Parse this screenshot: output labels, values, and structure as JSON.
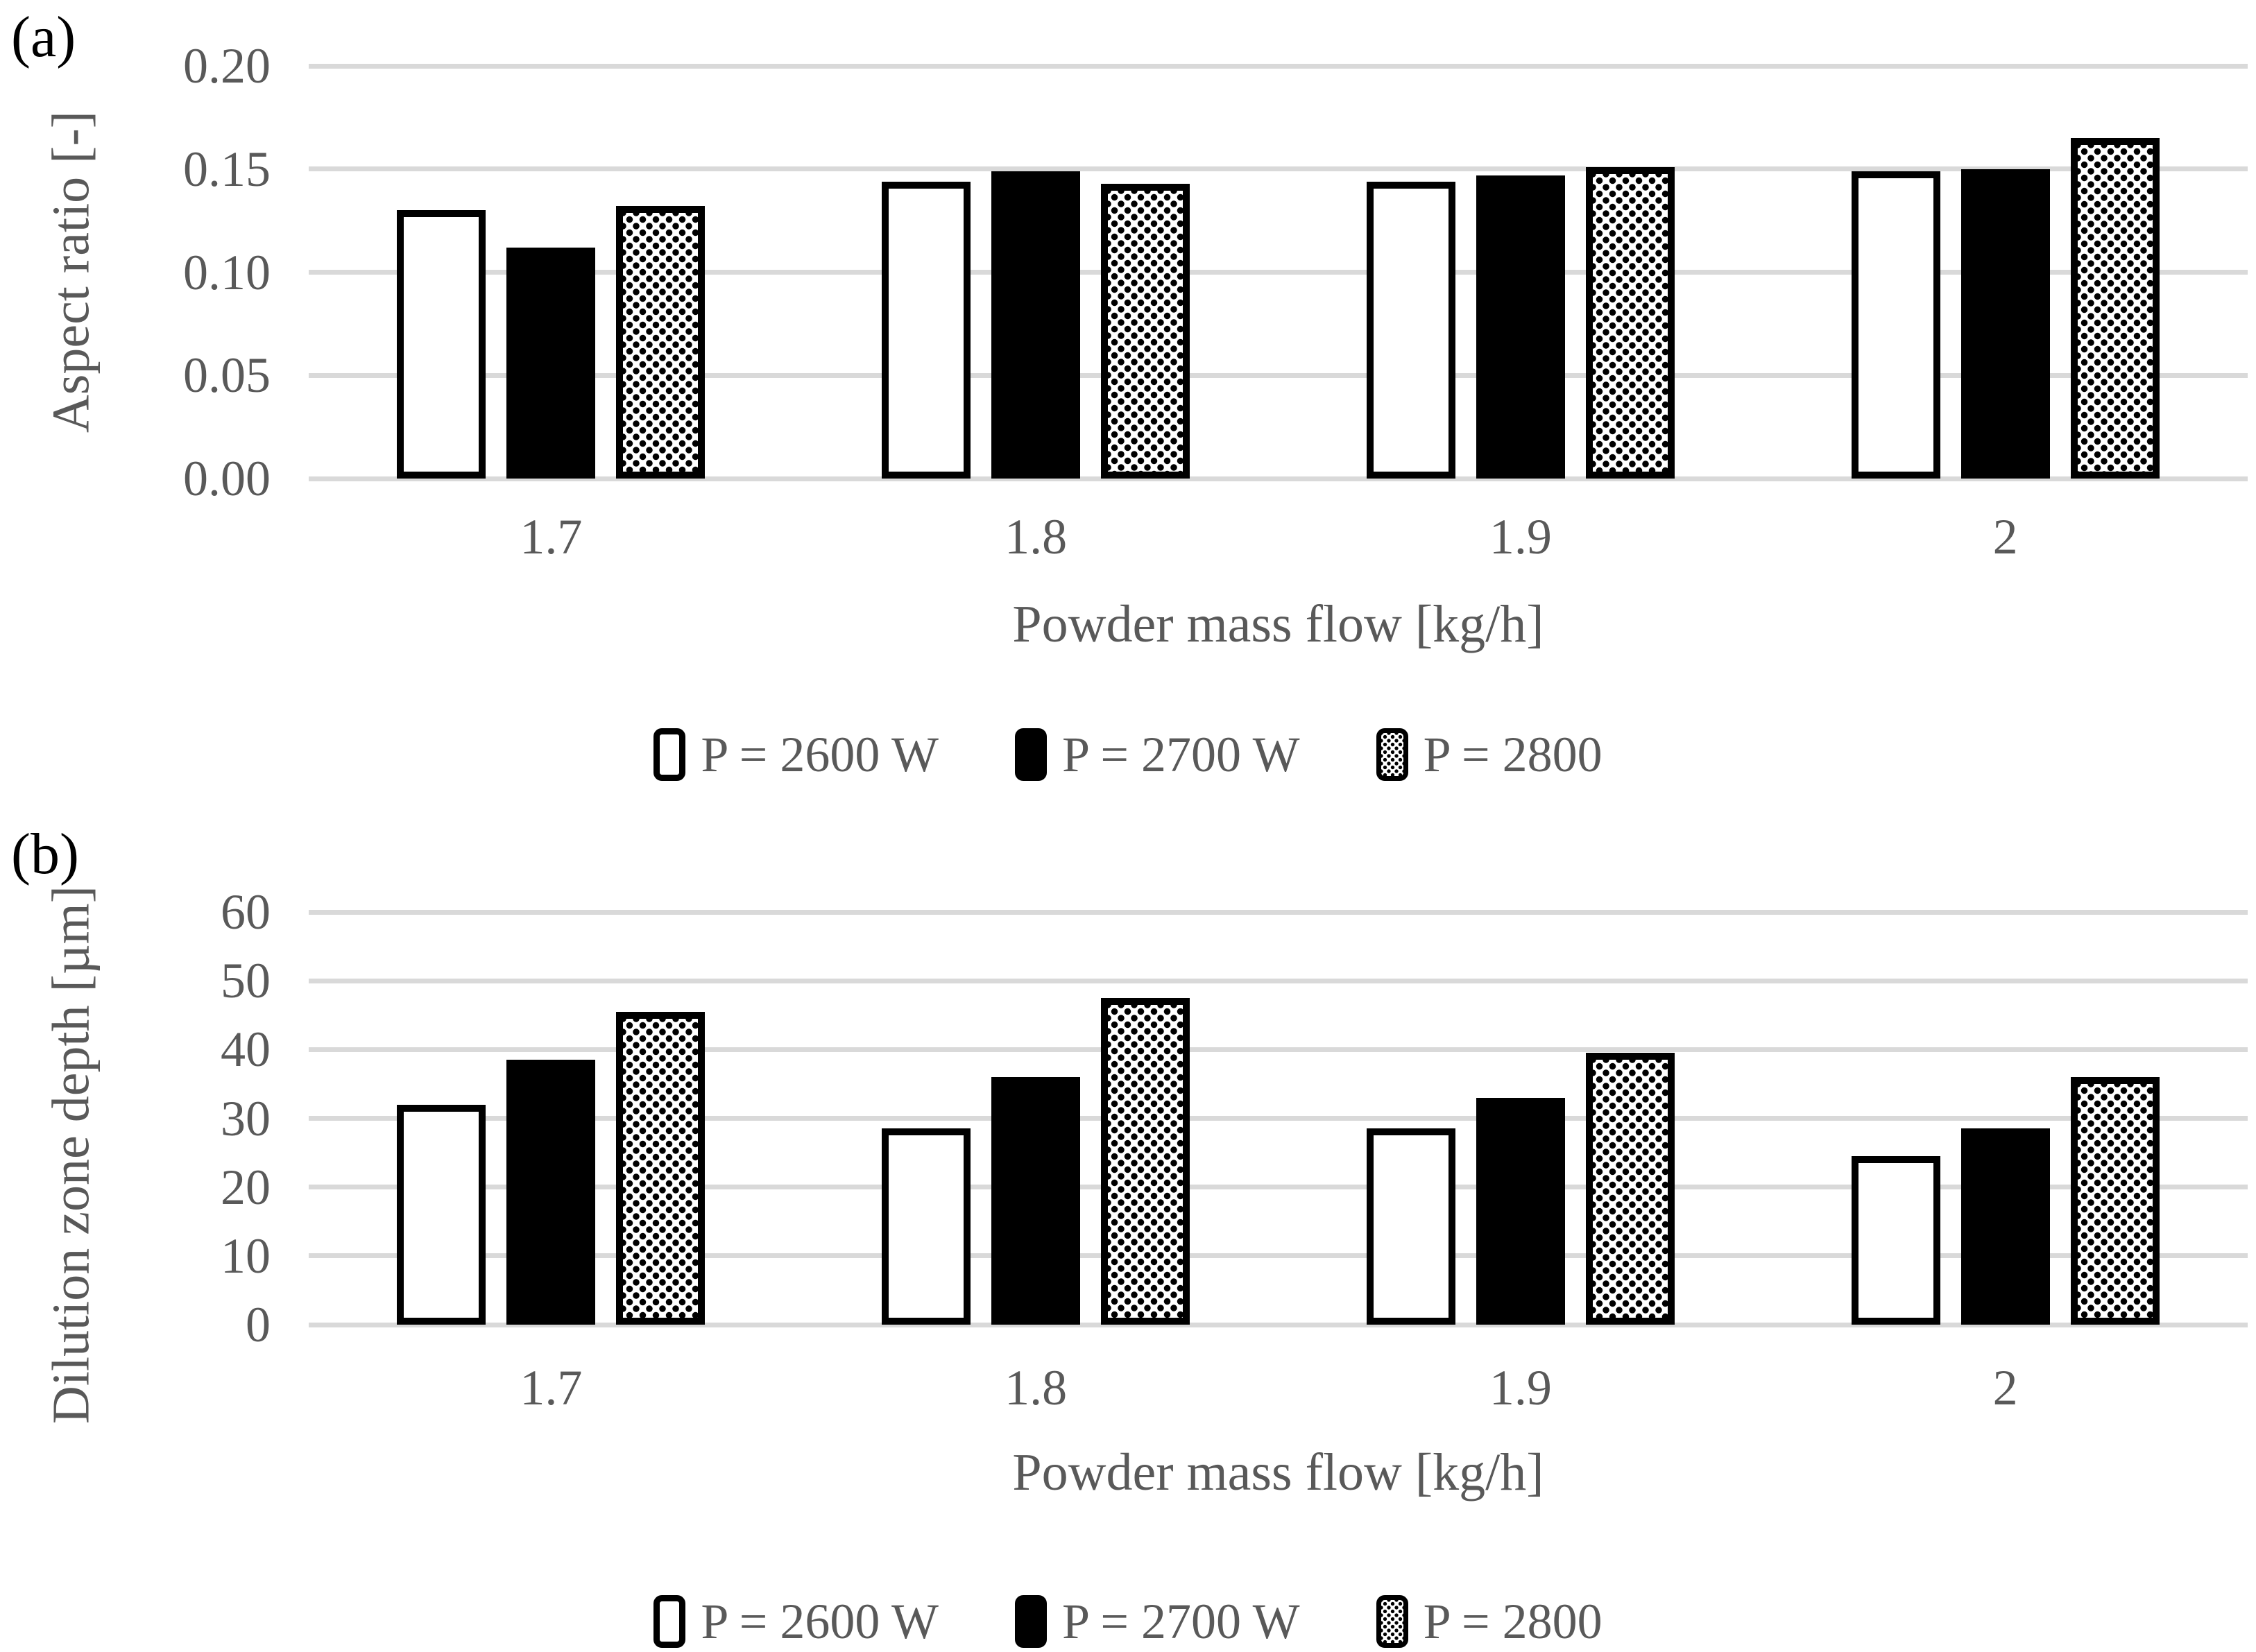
{
  "colors": {
    "background": "#ffffff",
    "gridline": "#d9d9d9",
    "axis_text": "#595959",
    "bar_black": "#000000",
    "bar_white_fill": "#ffffff"
  },
  "chart_data": [
    {
      "id": "a",
      "type": "bar",
      "panel_label": "(a)",
      "ylabel": "Aspect ratio [-]",
      "xlabel": "Powder mass flow [kg/h]",
      "categories": [
        "1.7",
        "1.8",
        "1.9",
        "2"
      ],
      "series": [
        {
          "name": "P = 2600 W",
          "style": "outline",
          "values": [
            0.13,
            0.144,
            0.144,
            0.149
          ]
        },
        {
          "name": "P = 2700 W",
          "style": "solid",
          "values": [
            0.112,
            0.149,
            0.147,
            0.15
          ]
        },
        {
          "name": "P = 2800",
          "style": "dotted",
          "values": [
            0.132,
            0.143,
            0.151,
            0.165
          ]
        }
      ],
      "ylim": [
        0,
        0.2
      ],
      "ytick_step": 0.05,
      "ytick_decimals": 2,
      "grid": true,
      "legend_position": "bottom"
    },
    {
      "id": "b",
      "type": "bar",
      "panel_label": "(b)",
      "ylabel": "Dilution zone depth [µm]",
      "xlabel": "Powder mass flow [kg/h]",
      "categories": [
        "1.7",
        "1.8",
        "1.9",
        "2"
      ],
      "series": [
        {
          "name": "P = 2600 W",
          "style": "outline",
          "values": [
            32,
            28.5,
            28.5,
            24.5
          ]
        },
        {
          "name": "P = 2700 W",
          "style": "solid",
          "values": [
            38.5,
            36,
            33,
            28.5
          ]
        },
        {
          "name": "P = 2800",
          "style": "dotted",
          "values": [
            45.5,
            47.5,
            39.5,
            36
          ]
        }
      ],
      "ylim": [
        0,
        60
      ],
      "ytick_step": 10,
      "ytick_decimals": 0,
      "grid": true,
      "legend_position": "bottom"
    }
  ]
}
